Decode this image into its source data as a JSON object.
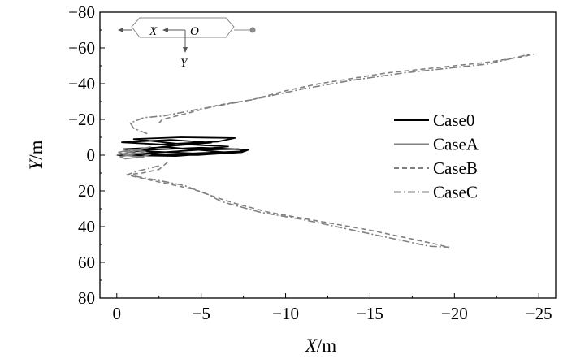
{
  "chart_data": {
    "type": "line",
    "title": "",
    "xlabel_var": "X",
    "xlabel_unit": "/m",
    "ylabel_var": "Y",
    "ylabel_unit": "/m",
    "xlim": [
      1,
      -26
    ],
    "ylim": [
      80,
      -80
    ],
    "x_reversed": true,
    "y_reversed": true,
    "x_ticks": [
      0,
      -5,
      -10,
      -15,
      -20,
      -25
    ],
    "x_tick_labels": [
      "0",
      "−5",
      "−10",
      "−15",
      "−20",
      "−25"
    ],
    "y_ticks": [
      -80,
      -60,
      -40,
      -20,
      0,
      20,
      40,
      60,
      80
    ],
    "y_tick_labels": [
      "−80",
      "−60",
      "−40",
      "−20",
      "0",
      "20",
      "40",
      "60",
      "80"
    ],
    "grid": false,
    "legend_position": "right",
    "inset": {
      "x_label": "X",
      "origin_label": "O",
      "y_label": "Y"
    },
    "series": [
      {
        "name": "Case0",
        "color": "#000000",
        "style": "solid",
        "points": [
          [
            0,
            0
          ],
          [
            -3.5,
            0.5
          ],
          [
            -6.4,
            -1.6
          ],
          [
            -3.0,
            -4.5
          ],
          [
            -0.4,
            -3.4
          ],
          [
            -2.4,
            -1.4
          ],
          [
            -5.0,
            -3.0
          ],
          [
            -7.2,
            -3.4
          ],
          [
            -7.6,
            -2.2
          ],
          [
            -4.5,
            -1.0
          ],
          [
            -1.0,
            -2.5
          ],
          [
            -3.0,
            -5.0
          ],
          [
            -5.6,
            -7.0
          ],
          [
            -3.2,
            -8.6
          ],
          [
            -0.3,
            -7.2
          ],
          [
            -2.6,
            -6.0
          ],
          [
            -6.0,
            -7.6
          ],
          [
            -7.0,
            -9.6
          ],
          [
            -3.8,
            -10.0
          ],
          [
            -1.0,
            -9.0
          ],
          [
            -3.8,
            -6.2
          ],
          [
            -6.6,
            -4.8
          ],
          [
            -3.4,
            -2.0
          ],
          [
            -0.8,
            -0.4
          ],
          [
            -4.8,
            -0.1
          ],
          [
            -7.4,
            -1.6
          ],
          [
            -7.8,
            -3.0
          ],
          [
            -5.0,
            -4.2
          ],
          [
            -2.0,
            -3.0
          ],
          [
            -0.6,
            -1.5
          ]
        ]
      },
      {
        "name": "CaseA",
        "color": "#808080",
        "style": "solid",
        "points": [
          [
            0,
            0
          ],
          [
            -0.6,
            -1.2
          ],
          [
            -1.4,
            -3.0
          ],
          [
            -2.0,
            -4.6
          ],
          [
            -1.2,
            -3.2
          ],
          [
            -0.4,
            -2.2
          ],
          [
            -1.1,
            -1.0
          ],
          [
            -2.0,
            -0.4
          ],
          [
            -1.4,
            1.0
          ],
          [
            -0.5,
            2.0
          ],
          [
            -0.2,
            0.8
          ],
          [
            -0.9,
            -0.3
          ],
          [
            -1.7,
            -2.0
          ],
          [
            -0.8,
            -3.0
          ],
          [
            -0.1,
            -1.6
          ],
          [
            -0.6,
            0.2
          ],
          [
            -1.6,
            1.2
          ],
          [
            -0.8,
            0.4
          ]
        ]
      },
      {
        "name": "CaseB",
        "color": "#808080",
        "style": "dashed",
        "points": [
          [
            -2.5,
            -18
          ],
          [
            -2.7,
            -20
          ],
          [
            -4.0,
            -23
          ],
          [
            -6.0,
            -28
          ],
          [
            -8.0,
            -31
          ],
          [
            -10.0,
            -36
          ],
          [
            -12.0,
            -40
          ],
          [
            -14.0,
            -43
          ],
          [
            -16.0,
            -46
          ],
          [
            -18.0,
            -48
          ],
          [
            -20.0,
            -50
          ],
          [
            -22.0,
            -52
          ],
          [
            -24.0,
            -55
          ],
          [
            -24.7,
            -56.5
          ]
        ]
      },
      {
        "name": "CaseC",
        "color": "#808080",
        "style": "dashdot",
        "points": [
          [
            -1.8,
            -12
          ],
          [
            -1.0,
            -15
          ],
          [
            -0.8,
            -18
          ],
          [
            -1.6,
            -21
          ],
          [
            -2.8,
            -22
          ],
          [
            -5.0,
            -26
          ],
          [
            -8.0,
            -31
          ],
          [
            -11.0,
            -37
          ],
          [
            -14.0,
            -42
          ],
          [
            -17.0,
            -46
          ],
          [
            -20.0,
            -49
          ],
          [
            -22.0,
            -51
          ],
          [
            -24.5,
            -56.5
          ]
        ]
      },
      {
        "name": "CaseB",
        "color": "#808080",
        "style": "dashed",
        "points": [
          [
            -3.0,
            4
          ],
          [
            -2.5,
            8
          ],
          [
            -1.5,
            10
          ],
          [
            -0.6,
            11
          ],
          [
            -2.0,
            14
          ],
          [
            -4.5,
            19
          ],
          [
            -6.0,
            24
          ],
          [
            -7.0,
            27
          ],
          [
            -9.0,
            32
          ],
          [
            -12.0,
            37
          ],
          [
            -15.0,
            42
          ],
          [
            -17.0,
            46
          ],
          [
            -19.0,
            50
          ],
          [
            -19.6,
            51.5
          ]
        ]
      },
      {
        "name": "CaseC",
        "color": "#808080",
        "style": "dashdot",
        "points": [
          [
            -2.5,
            6
          ],
          [
            -1.2,
            9
          ],
          [
            -0.6,
            11
          ],
          [
            -2.4,
            14
          ],
          [
            -4.0,
            17
          ],
          [
            -5.4,
            22
          ],
          [
            -6.2,
            26
          ],
          [
            -8.5,
            32
          ],
          [
            -11.0,
            36
          ],
          [
            -14.0,
            42
          ],
          [
            -16.5,
            47
          ],
          [
            -18.5,
            51
          ],
          [
            -19.7,
            51.5
          ]
        ]
      }
    ],
    "legend": [
      {
        "name": "Case0",
        "color": "#000000",
        "style": "solid"
      },
      {
        "name": "CaseA",
        "color": "#808080",
        "style": "solid"
      },
      {
        "name": "CaseB",
        "color": "#808080",
        "style": "dashed"
      },
      {
        "name": "CaseC",
        "color": "#808080",
        "style": "dashdot"
      }
    ]
  }
}
